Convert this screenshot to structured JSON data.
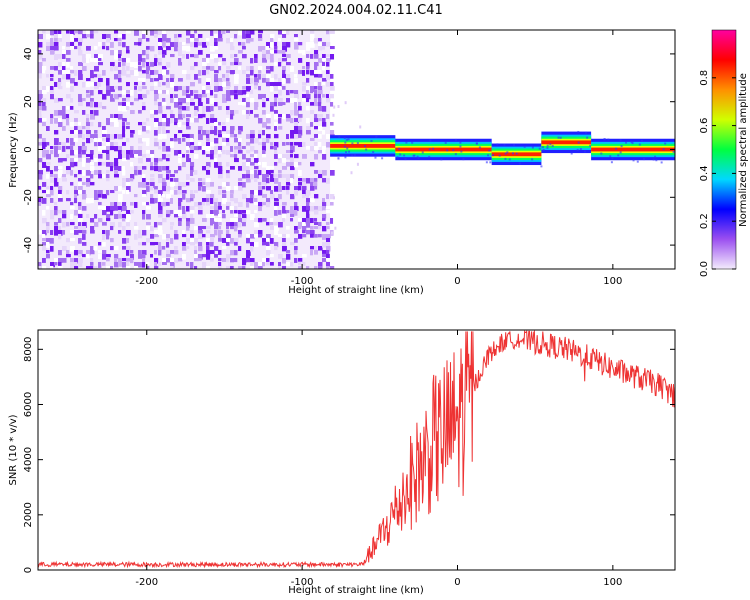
{
  "title": "GN02.2024.004.02.11.C41",
  "chart_data": [
    {
      "type": "heatmap",
      "xlabel": "Height of straight line (km)",
      "ylabel": "Frequency (Hz)",
      "xlim": [
        -270,
        140
      ],
      "ylim": [
        -50,
        50
      ],
      "xticks": [
        -200,
        -100,
        0,
        100
      ],
      "yticks": [
        -40,
        -20,
        0,
        20,
        40
      ],
      "noise_region_x": [
        -270,
        -82
      ],
      "signal_segments": [
        {
          "x": [
            -82,
            -40
          ],
          "y": 1.5
        },
        {
          "x": [
            -40,
            22
          ],
          "y": 0
        },
        {
          "x": [
            22,
            54
          ],
          "y": -2
        },
        {
          "x": [
            54,
            86
          ],
          "y": 3
        },
        {
          "x": [
            86,
            140
          ],
          "y": 0
        }
      ],
      "colorbar": {
        "label": "Normalized spectral amplitude",
        "ticks": [
          0.0,
          0.2,
          0.4,
          0.6,
          0.8
        ],
        "tick_labels": [
          "0.0",
          "0.2",
          "0.4",
          "0.6",
          "0.8"
        ],
        "range": [
          0,
          1
        ],
        "colors": [
          "#f4ecfc",
          "#9b4ff0",
          "#0000ff",
          "#00d8ff",
          "#00ff40",
          "#d0ff00",
          "#ff9000",
          "#ff0000",
          "#ff00a0"
        ]
      }
    },
    {
      "type": "line",
      "xlabel": "Height of straight line (km)",
      "ylabel": "SNR (10 * v/v)",
      "xlim": [
        -270,
        140
      ],
      "ylim": [
        0,
        8700
      ],
      "xticks": [
        -200,
        -100,
        0,
        100
      ],
      "yticks": [
        0,
        2000,
        4000,
        6000,
        8000
      ],
      "series": [
        {
          "color": "#ee3333",
          "x": [
            -270,
            -200,
            -120,
            -62,
            -55,
            -45,
            -30,
            -15,
            0,
            10,
            20,
            30,
            40,
            55,
            70,
            85,
            100,
            115,
            130,
            140
          ],
          "values": [
            200,
            200,
            200,
            200,
            700,
            1600,
            3200,
            4600,
            5400,
            6600,
            7800,
            8300,
            8400,
            8200,
            8000,
            7700,
            7300,
            7000,
            6700,
            6300
          ]
        }
      ]
    }
  ]
}
